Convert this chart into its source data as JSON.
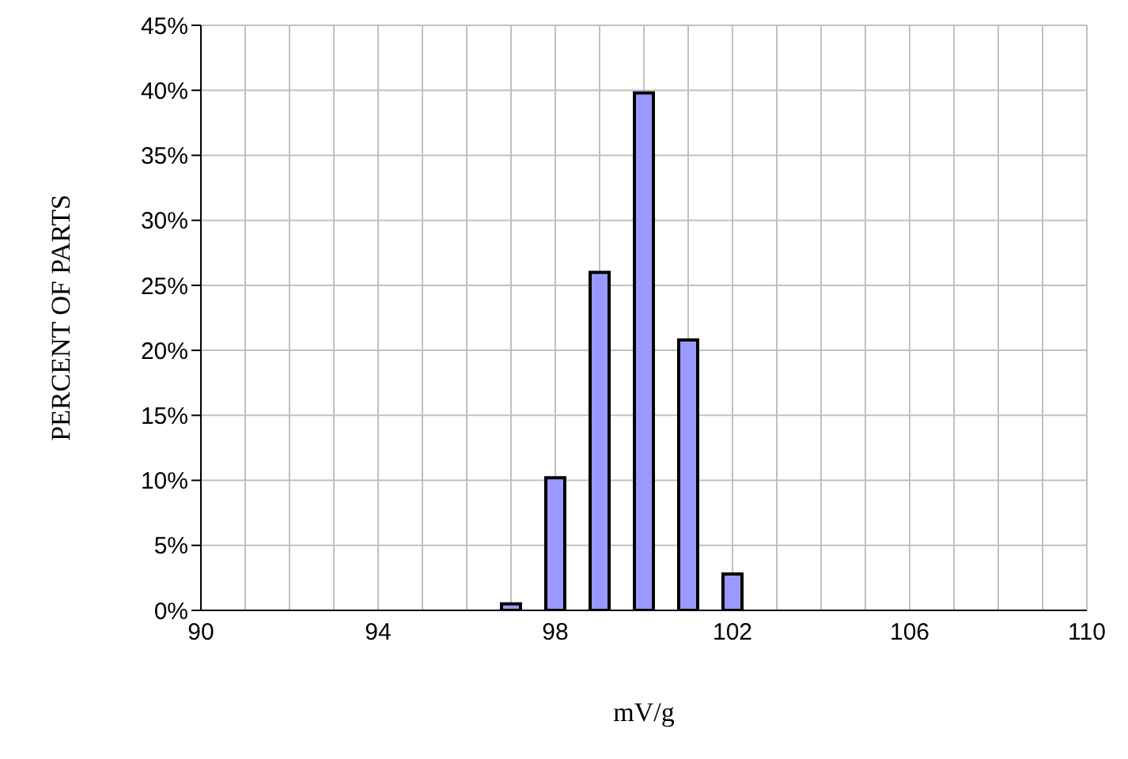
{
  "chart_data": {
    "type": "bar",
    "xlabel": "mV/g",
    "ylabel": "PERCENT OF PARTS",
    "x": [
      97,
      98,
      99,
      100,
      101,
      102
    ],
    "series": [
      {
        "color": "#9999ff",
        "values": [
          0.5,
          10.2,
          26.0,
          39.8,
          20.8,
          2.8
        ]
      }
    ],
    "xlim": [
      90,
      110
    ],
    "xticks": [
      90,
      {
        "value": 91,
        "label": null
      },
      {
        "value": 92,
        "label": null
      },
      {
        "value": 93,
        "label": null
      },
      94,
      {
        "value": 95,
        "label": null
      },
      {
        "value": 96,
        "label": null
      },
      {
        "value": 97,
        "label": null
      },
      98,
      {
        "value": 99,
        "label": null
      },
      {
        "value": 100,
        "label": null
      },
      {
        "value": 101,
        "label": null
      },
      102,
      {
        "value": 103,
        "label": null
      },
      {
        "value": 104,
        "label": null
      },
      {
        "value": 105,
        "label": null
      },
      106,
      {
        "value": 107,
        "label": null
      },
      {
        "value": 108,
        "label": null
      },
      {
        "value": 109,
        "label": null
      },
      110
    ],
    "ylim": [
      0,
      45
    ],
    "yticks": [
      {
        "value": 0,
        "label": "0%"
      },
      {
        "value": 5,
        "label": "5%"
      },
      {
        "value": 10,
        "label": "10%"
      },
      {
        "value": 15,
        "label": "15%"
      },
      {
        "value": 20,
        "label": "20%"
      },
      {
        "value": 25,
        "label": "25%"
      },
      {
        "value": 30,
        "label": "30%"
      },
      {
        "value": 35,
        "label": "35%"
      },
      {
        "value": 40,
        "label": "40%"
      },
      {
        "value": 45,
        "label": "45%"
      }
    ],
    "grid": true
  }
}
